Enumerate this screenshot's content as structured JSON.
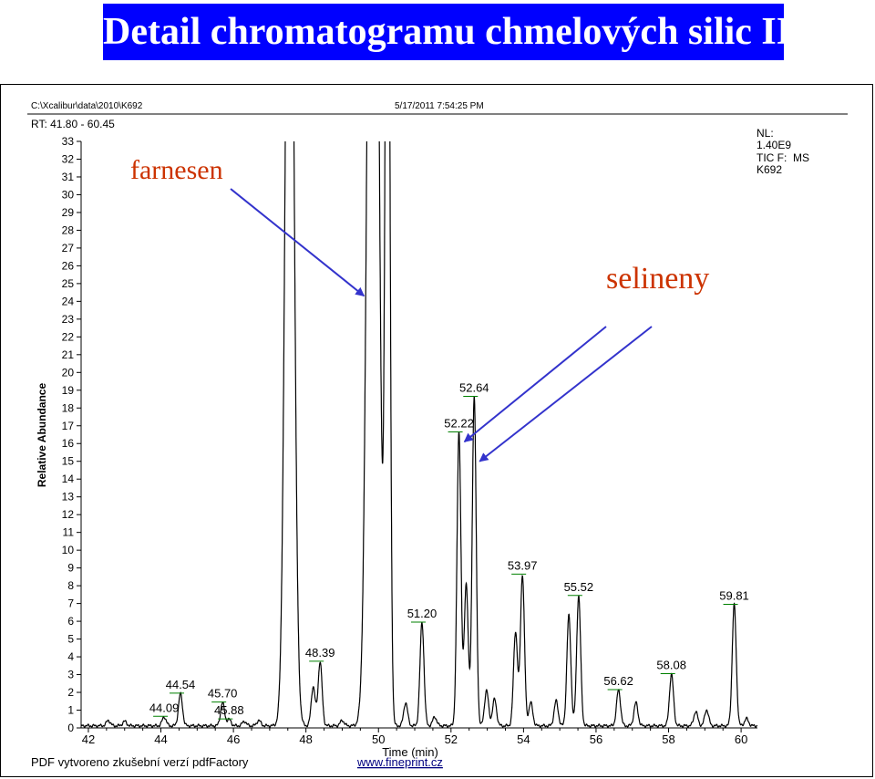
{
  "slide": {
    "title": "Detail chromatogramu chmelových silic II"
  },
  "header": {
    "file_path": "C:\\Xcalibur\\data\\2010\\K692",
    "datetime": "5/17/2011 7:54:25 PM",
    "rt_range": "RT: 41.80 - 60.45",
    "nl_line1": "NL:",
    "nl_line2": "1.40E9",
    "nl_line3": "TIC F:  MS",
    "nl_line4": "K692"
  },
  "footer": {
    "pdf_note": "PDF vytvoreno zkušební verzí pdfFactory",
    "pdf_link": "www.fineprint.cz"
  },
  "colors": {
    "title_bg": "#0000ff",
    "annotation_text": "#cc3300",
    "arrow": "#3333cc",
    "trace": "#000000",
    "peak_marker": "#008000"
  },
  "chart_data": {
    "type": "line",
    "title": "",
    "xlabel": "Time (min)",
    "ylabel": "Relative Abundance",
    "xlim": [
      41.8,
      60.45
    ],
    "ylim": [
      0,
      33
    ],
    "xticks": [
      42,
      44,
      46,
      48,
      50,
      52,
      54,
      56,
      58,
      60
    ],
    "yticks": [
      0,
      1,
      2,
      3,
      4,
      5,
      6,
      7,
      8,
      9,
      10,
      11,
      12,
      13,
      14,
      15,
      16,
      17,
      18,
      19,
      20,
      21,
      22,
      23,
      24,
      25,
      26,
      27,
      28,
      29,
      30,
      31,
      32,
      33
    ],
    "grid": false,
    "peaks": [
      {
        "rt": 42.55,
        "h": 0.3
      },
      {
        "rt": 43.0,
        "h": 0.25
      },
      {
        "rt": 44.09,
        "h": 0.5,
        "label": "44.09"
      },
      {
        "rt": 44.54,
        "h": 1.8,
        "label": "44.54"
      },
      {
        "rt": 45.7,
        "h": 1.3,
        "label": "45.70"
      },
      {
        "rt": 45.88,
        "h": 0.35,
        "label": "45.88"
      },
      {
        "rt": 46.3,
        "h": 0.25
      },
      {
        "rt": 46.7,
        "h": 0.3
      },
      {
        "rt": 47.55,
        "h": 60,
        "w": 0.11
      },
      {
        "rt": 48.2,
        "h": 2.2
      },
      {
        "rt": 48.39,
        "h": 3.6,
        "label": "48.39"
      },
      {
        "rt": 49.0,
        "h": 0.3
      },
      {
        "rt": 49.85,
        "h": 80,
        "w": 0.13
      },
      {
        "rt": 50.25,
        "h": 60,
        "w": 0.06
      },
      {
        "rt": 50.75,
        "h": 1.3
      },
      {
        "rt": 51.2,
        "h": 5.8,
        "label": "51.20"
      },
      {
        "rt": 51.55,
        "h": 0.5
      },
      {
        "rt": 52.22,
        "h": 16.5,
        "label": "52.22"
      },
      {
        "rt": 52.42,
        "h": 8.0
      },
      {
        "rt": 52.64,
        "h": 18.5,
        "label": "52.64"
      },
      {
        "rt": 52.98,
        "h": 2.0
      },
      {
        "rt": 53.2,
        "h": 1.5
      },
      {
        "rt": 53.78,
        "h": 5.3
      },
      {
        "rt": 53.97,
        "h": 8.5,
        "label": "53.97"
      },
      {
        "rt": 54.2,
        "h": 1.3
      },
      {
        "rt": 54.9,
        "h": 1.4
      },
      {
        "rt": 55.25,
        "h": 6.2
      },
      {
        "rt": 55.52,
        "h": 7.3,
        "label": "55.52"
      },
      {
        "rt": 56.62,
        "h": 2.0,
        "label": "56.62"
      },
      {
        "rt": 57.1,
        "h": 1.3
      },
      {
        "rt": 58.08,
        "h": 2.9,
        "label": "58.08"
      },
      {
        "rt": 58.75,
        "h": 0.8
      },
      {
        "rt": 59.05,
        "h": 0.9
      },
      {
        "rt": 59.81,
        "h": 6.8,
        "label": "59.81"
      },
      {
        "rt": 60.15,
        "h": 0.4
      }
    ],
    "annotations": [
      {
        "text": "farnesen",
        "rt": 49.6,
        "y": 24.0
      },
      {
        "text": "selineny",
        "rt": 52.22,
        "y": 16.0
      },
      {
        "text": "",
        "rt": 52.64,
        "y": 15.0
      }
    ]
  }
}
